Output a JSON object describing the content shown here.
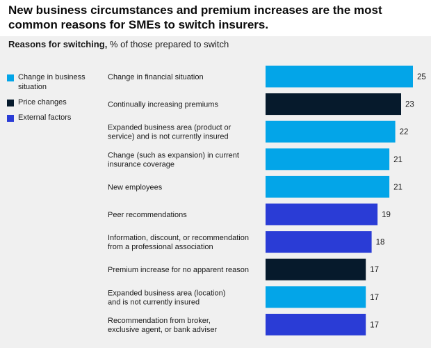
{
  "title": "New business circumstances and premium increases are the most common reasons for SMEs to switch insurers.",
  "subtitle": {
    "bold": "Reasons for switching,",
    "rest": " % of those prepared to switch"
  },
  "legend": [
    {
      "label": "Change in business situation",
      "color": "#03a5e8"
    },
    {
      "label": "Price changes",
      "color": "#061a2c"
    },
    {
      "label": "External factors",
      "color": "#2a3cd6"
    }
  ],
  "chart_data": {
    "type": "bar",
    "orientation": "horizontal",
    "title": "New business circumstances and premium increases are the most common reasons for SMEs to switch insurers.",
    "subtitle": "Reasons for switching, % of those prepared to switch",
    "xlabel": "",
    "ylabel": "",
    "categories": [
      [
        "Change in financial situation"
      ],
      [
        "Continually increasing premiums"
      ],
      [
        "Expanded business area (product or",
        "service) and is not currently insured"
      ],
      [
        "Change (such as expansion) in current",
        "insurance coverage"
      ],
      [
        "New employees"
      ],
      [
        "Peer recommendations"
      ],
      [
        "Information, discount, or recommendation",
        "from a professional association"
      ],
      [
        "Premium increase for no apparent reason"
      ],
      [
        "Expanded business area (location)",
        "and is not currently insured"
      ],
      [
        "Recommendation from broker,",
        "exclusive agent, or bank adviser"
      ]
    ],
    "values": [
      25,
      23,
      22,
      21,
      21,
      19,
      18,
      17,
      17,
      17
    ],
    "groups": [
      "Change in business situation",
      "Price changes",
      "Change in business situation",
      "Change in business situation",
      "Change in business situation",
      "External factors",
      "External factors",
      "Price changes",
      "Change in business situation",
      "External factors"
    ],
    "group_colors": {
      "Change in business situation": "#03a5e8",
      "Price changes": "#061a2c",
      "External factors": "#2a3cd6"
    },
    "xlim": [
      0,
      25
    ],
    "grid": false,
    "legend_position": "left"
  }
}
